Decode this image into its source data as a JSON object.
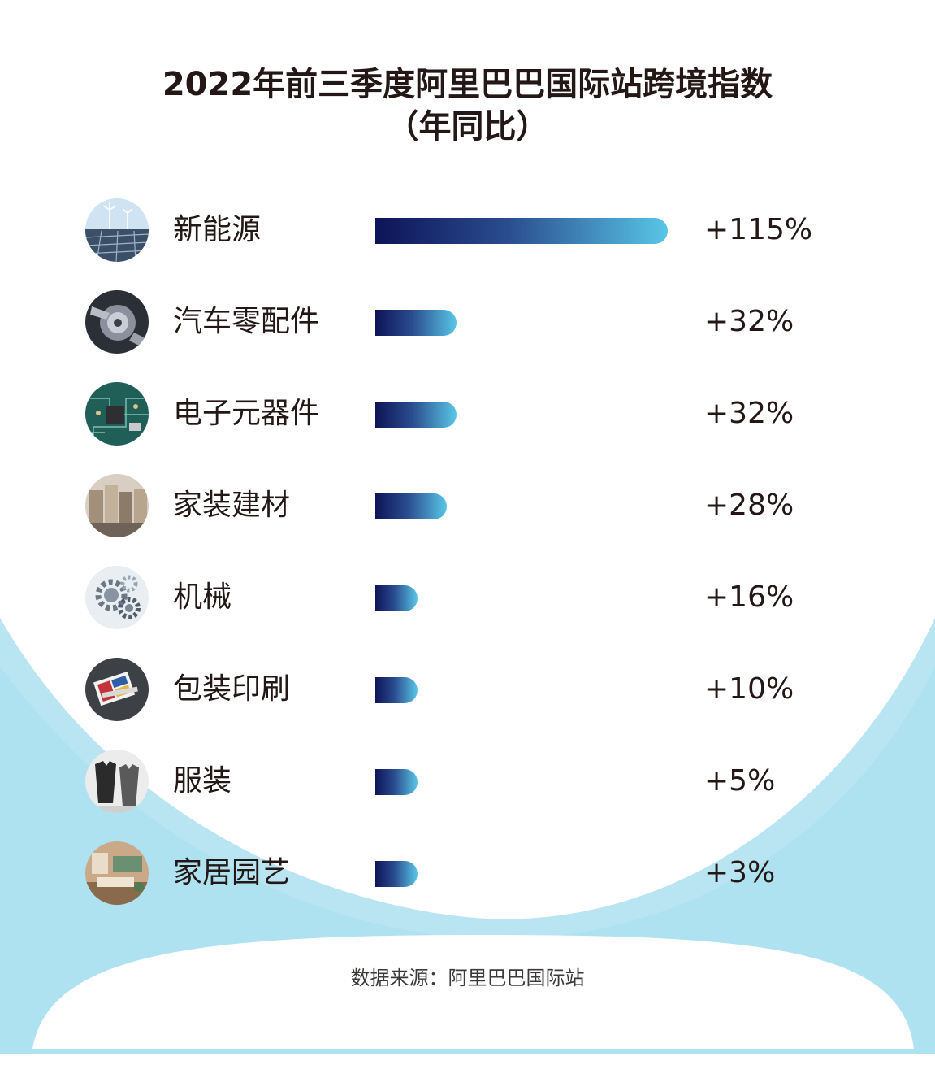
{
  "chart_data": {
    "type": "bar",
    "orientation": "horizontal",
    "title": "2022年前三季度阿里巴巴国际站跨境指数",
    "subtitle": "（年同比）",
    "categories": [
      "新能源",
      "汽车零配件",
      "电子元器件",
      "家装建材",
      "机械",
      "包装印刷",
      "服装",
      "家居园艺"
    ],
    "values": [
      115,
      32,
      32,
      28,
      16,
      10,
      5,
      3
    ],
    "value_labels": [
      "+115%",
      "+32%",
      "+32%",
      "+28%",
      "+16%",
      "+10%",
      "+5%",
      "+3%"
    ],
    "icons": [
      "solar-wind-icon",
      "auto-parts-icon",
      "circuit-board-icon",
      "building-materials-icon",
      "gears-icon",
      "printing-icon",
      "clothing-icon",
      "home-garden-icon"
    ],
    "colors": {
      "bar_start": "#0d1457",
      "bar_end": "#58c6e6",
      "text": "#231815"
    },
    "source": "数据来源：阿里巴巴国际站"
  }
}
